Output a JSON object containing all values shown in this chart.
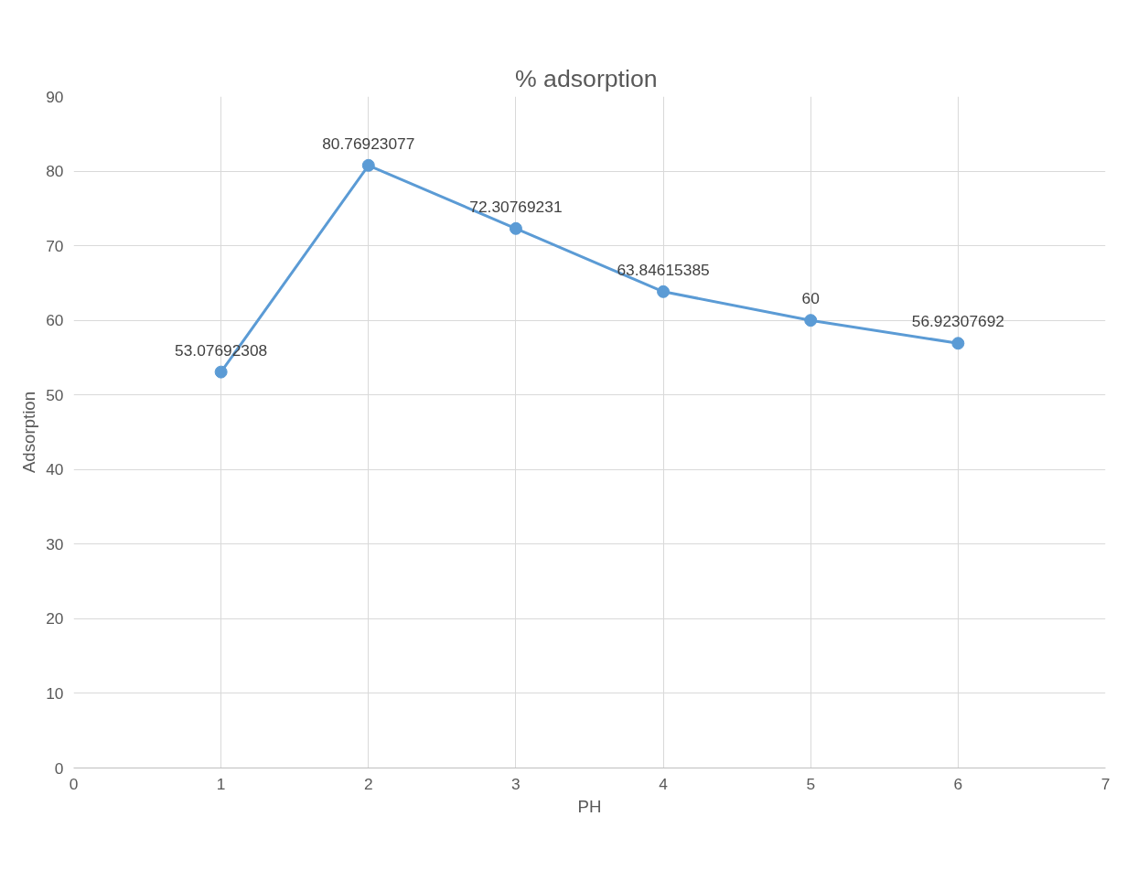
{
  "chart_data": {
    "type": "line",
    "title": "%  adsorption",
    "xlabel": "PH",
    "ylabel": "Adsorption",
    "x": [
      1,
      2,
      3,
      4,
      5,
      6
    ],
    "series": [
      {
        "color": "#5b9bd5",
        "values": [
          53.07692308,
          80.76923077,
          72.30769231,
          63.84615385,
          60,
          56.92307692
        ]
      }
    ],
    "xlim": [
      0,
      7
    ],
    "xticks": [
      0,
      1,
      2,
      3,
      4,
      5,
      6,
      7
    ],
    "ylim": [
      0,
      90
    ],
    "yticks": [
      0,
      10,
      20,
      30,
      40,
      50,
      60,
      70,
      80,
      90
    ],
    "grid": true,
    "marker": "circle",
    "line_style": "solid",
    "data_labels": true
  }
}
